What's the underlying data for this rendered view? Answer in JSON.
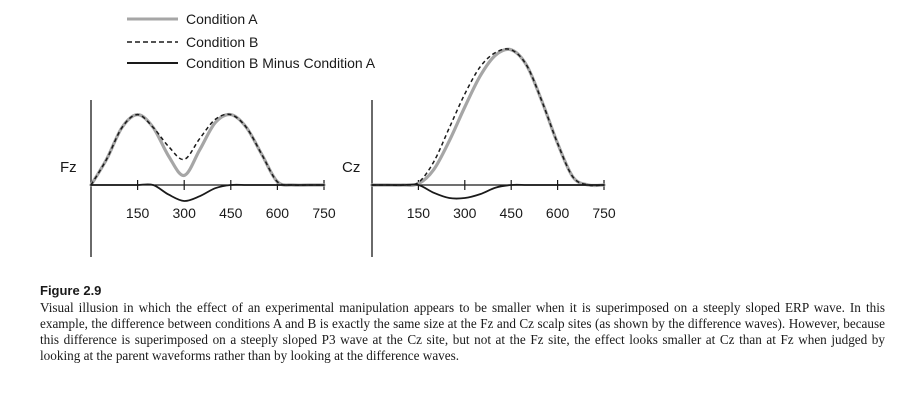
{
  "chart_data": [
    {
      "type": "line",
      "site": "Fz",
      "x": [
        0,
        50,
        100,
        150,
        200,
        250,
        300,
        350,
        400,
        450,
        500,
        550,
        600,
        650,
        700,
        750
      ],
      "tick_labels": [
        "150",
        "300",
        "450",
        "600",
        "750"
      ],
      "xlim": [
        0,
        750
      ],
      "ylim": [
        -1.3,
        2.7
      ],
      "series": [
        {
          "name": "Condition A",
          "values": [
            0,
            0.8,
            1.8,
            2.2,
            1.8,
            0.9,
            0.3,
            1.1,
            1.95,
            2.2,
            1.8,
            0.95,
            0.1,
            0,
            0,
            0
          ]
        },
        {
          "name": "Condition B",
          "values": [
            0,
            0.8,
            1.8,
            2.2,
            1.8,
            1.2,
            0.8,
            1.45,
            2.05,
            2.2,
            1.8,
            0.95,
            0.1,
            0,
            0,
            0
          ]
        },
        {
          "name": "Condition B Minus Condition A",
          "values": [
            0,
            0,
            0,
            0,
            0,
            -0.3,
            -0.5,
            -0.35,
            -0.1,
            0,
            0,
            0,
            0,
            0,
            0,
            0
          ]
        }
      ]
    },
    {
      "type": "line",
      "site": "Cz",
      "x": [
        0,
        50,
        100,
        150,
        200,
        250,
        300,
        350,
        400,
        450,
        500,
        550,
        600,
        650,
        700,
        750
      ],
      "tick_labels": [
        "150",
        "300",
        "450",
        "600",
        "750"
      ],
      "xlim": [
        0,
        750
      ],
      "ylim": [
        -1.3,
        5.5
      ],
      "series": [
        {
          "name": "Condition A",
          "values": [
            0,
            0,
            0,
            0.05,
            0.6,
            1.7,
            3.0,
            4.2,
            5.0,
            5.2,
            4.6,
            3.2,
            1.6,
            0.3,
            0,
            0
          ]
        },
        {
          "name": "Condition B",
          "values": [
            0,
            0,
            0,
            0.1,
            0.9,
            2.2,
            3.5,
            4.55,
            5.1,
            5.2,
            4.6,
            3.2,
            1.6,
            0.3,
            0,
            0
          ]
        },
        {
          "name": "Condition B Minus Condition A",
          "values": [
            0,
            0,
            0,
            0,
            -0.3,
            -0.5,
            -0.5,
            -0.35,
            -0.1,
            0,
            0,
            0,
            0,
            0,
            0,
            0
          ]
        }
      ]
    }
  ],
  "legend": {
    "items": [
      "Condition A",
      "Condition B",
      "Condition B Minus Condition A"
    ],
    "styles": [
      {
        "color": "#a6a6a6",
        "dash": "solid"
      },
      {
        "color": "#1a1a1a",
        "dash": "dashed"
      },
      {
        "color": "#1a1a1a",
        "dash": "solid"
      }
    ]
  },
  "caption": {
    "title": "Figure 2.9",
    "text": "Visual illusion in which the effect of an experimental manipulation appears to be smaller when it is superimposed on a steeply sloped ERP wave. In this example, the difference between conditions A and B is exactly the same size at the Fz and Cz scalp sites (as shown by the difference waves). However, because this difference is superimposed on a steeply sloped P3 wave at the Cz site, but not at the Fz site, the effect looks smaller at Cz than at Fz when judged by looking at the parent waveforms rather than by looking at the difference waves."
  }
}
